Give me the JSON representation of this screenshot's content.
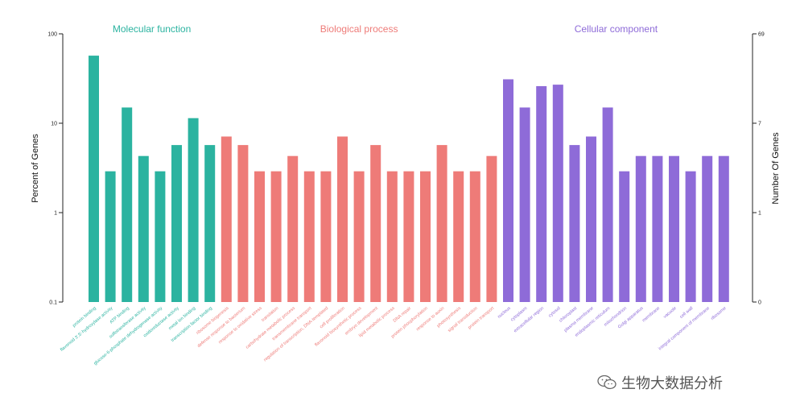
{
  "chart_data": {
    "type": "bar",
    "ylabel_left": "Percent of Genes",
    "ylabel_right": "Number Of Genes",
    "left_axis": {
      "scale": "log",
      "ticks": [
        "0.1",
        "1",
        "10",
        "100"
      ]
    },
    "right_axis": {
      "ticks": [
        "0",
        "1",
        "7",
        "69"
      ]
    },
    "groups": [
      {
        "name": "Molecular function",
        "color": "#2bb3a0"
      },
      {
        "name": "Biological process",
        "color": "#ee7b78"
      },
      {
        "name": "Cellular component",
        "color": "#8e6bd8"
      }
    ],
    "categories": [
      {
        "label": "protein binding",
        "group": 0,
        "value": 57
      },
      {
        "label": "flavonoid 3',5'-hydroxylase activity",
        "group": 0,
        "value": 2.9
      },
      {
        "label": "ATP binding",
        "group": 0,
        "value": 15
      },
      {
        "label": "sulfotransferase activity",
        "group": 0,
        "value": 4.3
      },
      {
        "label": "glucose-6-phosphate dehydrogenase activity",
        "group": 0,
        "value": 2.9
      },
      {
        "label": "oxidoreductase activity",
        "group": 0,
        "value": 5.7
      },
      {
        "label": "metal ion binding",
        "group": 0,
        "value": 11.4
      },
      {
        "label": "transcription factor binding",
        "group": 0,
        "value": 5.7
      },
      {
        "label": "ribosome biogenesis",
        "group": 1,
        "value": 7.1
      },
      {
        "label": "defense response to bacterium",
        "group": 1,
        "value": 5.7
      },
      {
        "label": "response to oxidative stress",
        "group": 1,
        "value": 2.9
      },
      {
        "label": "translation",
        "group": 1,
        "value": 2.9
      },
      {
        "label": "carbohydrate metabolic process",
        "group": 1,
        "value": 4.3
      },
      {
        "label": "transmembrane transport",
        "group": 1,
        "value": 2.9
      },
      {
        "label": "regulation of transcription, DNA-templated",
        "group": 1,
        "value": 2.9
      },
      {
        "label": "cell proliferation",
        "group": 1,
        "value": 7.1
      },
      {
        "label": "flavonoid biosynthetic process",
        "group": 1,
        "value": 2.9
      },
      {
        "label": "embryo development",
        "group": 1,
        "value": 5.7
      },
      {
        "label": "lipid metabolic process",
        "group": 1,
        "value": 2.9
      },
      {
        "label": "DNA repair",
        "group": 1,
        "value": 2.9
      },
      {
        "label": "protein phosphorylation",
        "group": 1,
        "value": 2.9
      },
      {
        "label": "response to auxin",
        "group": 1,
        "value": 5.7
      },
      {
        "label": "photosynthesis",
        "group": 1,
        "value": 2.9
      },
      {
        "label": "signal transduction",
        "group": 1,
        "value": 2.9
      },
      {
        "label": "protein transport",
        "group": 1,
        "value": 4.3
      },
      {
        "label": "nucleus",
        "group": 2,
        "value": 31
      },
      {
        "label": "cytoplasm",
        "group": 2,
        "value": 15
      },
      {
        "label": "extracellular region",
        "group": 2,
        "value": 26
      },
      {
        "label": "cytosol",
        "group": 2,
        "value": 27
      },
      {
        "label": "chloroplast",
        "group": 2,
        "value": 5.7
      },
      {
        "label": "plasma membrane",
        "group": 2,
        "value": 7.1
      },
      {
        "label": "endoplasmic reticulum",
        "group": 2,
        "value": 15
      },
      {
        "label": "mitochondrion",
        "group": 2,
        "value": 2.9
      },
      {
        "label": "Golgi apparatus",
        "group": 2,
        "value": 4.3
      },
      {
        "label": "membrane",
        "group": 2,
        "value": 4.3
      },
      {
        "label": "vacuole",
        "group": 2,
        "value": 4.3
      },
      {
        "label": "cell wall",
        "group": 2,
        "value": 2.9
      },
      {
        "label": "integral component of membrane",
        "group": 2,
        "value": 4.3
      },
      {
        "label": "ribosome",
        "group": 2,
        "value": 4.3
      }
    ]
  },
  "watermark": {
    "text": "生物大数据分析",
    "icon": "wechat-icon"
  }
}
